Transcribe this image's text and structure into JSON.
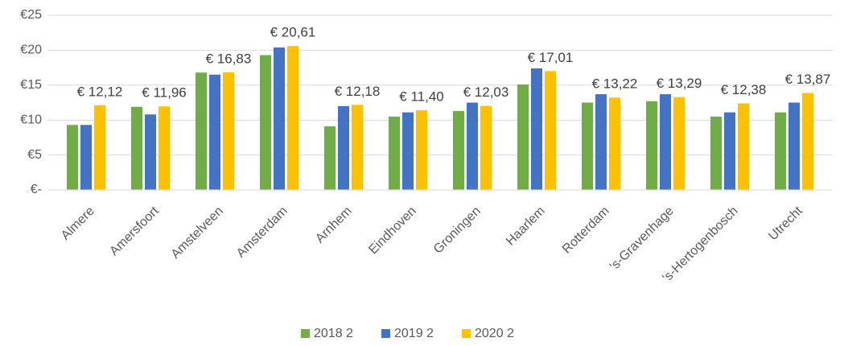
{
  "chart_data": {
    "type": "bar",
    "categories": [
      "Almere",
      "Amersfoort",
      "Amstelveen",
      "Amsterdam",
      "Arnhem",
      "Eindhoven",
      "Groningen",
      "Haarlem",
      "Rotterdam",
      "'s-Gravenhage",
      "'s-Hertogenbosch",
      "Utrecht"
    ],
    "series": [
      {
        "name": "2018 2",
        "color": "#70ad47",
        "values": [
          9.3,
          11.9,
          16.8,
          19.3,
          9.1,
          10.5,
          11.3,
          15.1,
          12.5,
          12.7,
          10.5,
          11.1
        ]
      },
      {
        "name": "2019 2",
        "color": "#4472c4",
        "values": [
          9.3,
          10.8,
          16.5,
          20.4,
          12.0,
          11.1,
          12.5,
          17.4,
          13.7,
          13.7,
          11.1,
          12.5
        ]
      },
      {
        "name": "2020 2",
        "color": "#ffc000",
        "values": [
          12.12,
          11.96,
          16.83,
          20.61,
          12.18,
          11.4,
          12.03,
          17.01,
          13.22,
          13.29,
          12.38,
          13.87
        ],
        "value_labels": [
          "€ 12,12",
          "€ 11,96",
          "€ 16,83",
          "€ 20,61",
          "€ 12,18",
          "€ 11,40",
          "€ 12,03",
          "€ 17,01",
          "€ 13,22",
          "€ 13,29",
          "€ 12,38",
          "€ 13,87"
        ]
      }
    ],
    "ylim": [
      0,
      25
    ],
    "yticks": [
      {
        "value": 0,
        "label": "€-"
      },
      {
        "value": 5,
        "label": "€5"
      },
      {
        "value": 10,
        "label": "€10"
      },
      {
        "value": 15,
        "label": "€15"
      },
      {
        "value": 20,
        "label": "€20"
      },
      {
        "value": 25,
        "label": "€25"
      }
    ],
    "grid": true,
    "legend": "bottom"
  }
}
